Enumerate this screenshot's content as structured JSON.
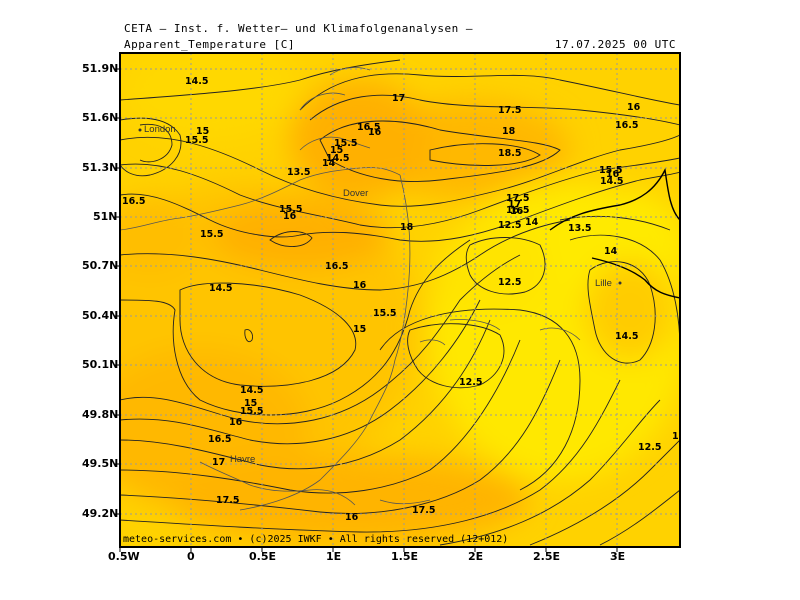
{
  "header": {
    "org": "CETA — Inst. f. Wetter— und Klimafolgenanalysen —",
    "variable": "Apparent_Temperature [C]",
    "valid_time": "17.07.2025 00 UTC"
  },
  "footer": "meteo-services.com • (c)2025 IWKF • All rights reserved (12+012)",
  "axes": {
    "lat_labels": [
      "51.9N",
      "51.6N",
      "51.3N",
      "51N",
      "50.7N",
      "50.4N",
      "50.1N",
      "49.8N",
      "49.5N",
      "49.2N"
    ],
    "lon_labels": [
      "0.5W",
      "0",
      "0.5E",
      "1E",
      "1.5E",
      "2E",
      "2.5E",
      "3E"
    ]
  },
  "cities": [
    "London",
    "Dover",
    "Lille",
    "Havre"
  ],
  "contour_labels": [
    "14.5",
    "15",
    "15.5",
    "17",
    "16",
    "16.5",
    "17.5",
    "18",
    "16",
    "16.5",
    "18.5",
    "15.5",
    "14.5",
    "13.5",
    "15.5",
    "15",
    "14.5",
    "14",
    "16",
    "Dover",
    "16.5",
    "15.5",
    "16",
    "18",
    "17.5",
    "17",
    "16.5",
    "16",
    "14",
    "12.5",
    "13.5",
    "14",
    "15.5",
    "16.5",
    "16",
    "12.5",
    "14.5",
    "15",
    "15.5",
    "14.5",
    "14.5",
    "12.5",
    "14.5",
    "15",
    "15.5",
    "16",
    "16.5",
    "17",
    "12.5",
    "17.5",
    "16",
    "17.5",
    "15"
  ],
  "colors": {
    "yellow": "#ffe600",
    "amber": "#ffcc00",
    "orange": "#ffb000",
    "contour": "#222222",
    "coast": "#444444",
    "grid": "#9a9a9a"
  }
}
